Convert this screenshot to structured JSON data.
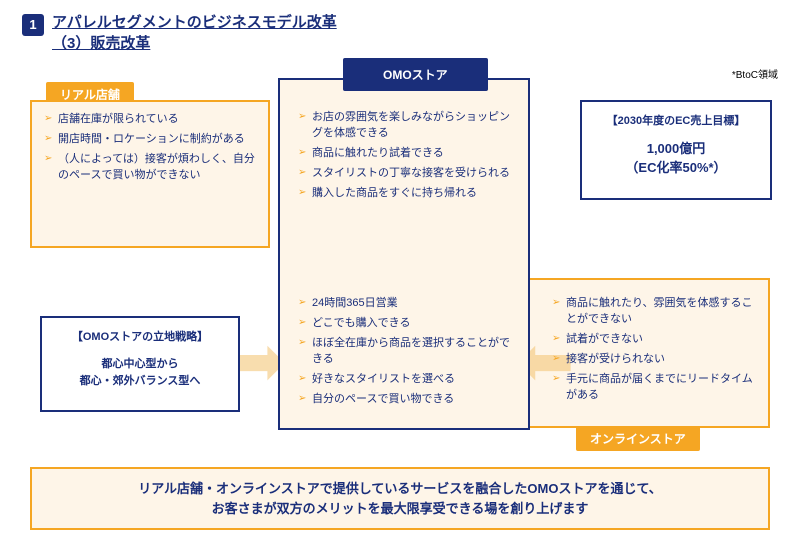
{
  "section_number": "1",
  "title_line1": "アパレルセグメントのビジネスモデル改革",
  "title_line2": "（3）販売改革",
  "note": "*BtoC領域",
  "tabs": {
    "real": "リアル店舗",
    "omo": "OMOストア",
    "online": "オンラインストア"
  },
  "real_items": [
    "店舗在庫が限られている",
    "開店時間・ロケーションに制約がある",
    "（人によっては）接客が煩わしく、自分のペースで買い物ができない"
  ],
  "omo1_items": [
    "お店の雰囲気を楽しみながらショッピングを体感できる",
    "商品に触れたり試着できる",
    "スタイリストの丁寧な接客を受けられる",
    "購入した商品をすぐに持ち帰れる"
  ],
  "omo2_items": [
    "24時間365日営業",
    "どこでも購入できる",
    "ほぼ全在庫から商品を選択することができる",
    "好きなスタイリストを選べる",
    "自分のペースで買い物できる"
  ],
  "online_items": [
    "商品に触れたり、雰囲気を体感することができない",
    "試着ができない",
    "接客が受けられない",
    "手元に商品が届くまでにリードタイムがある"
  ],
  "target": {
    "heading": "【2030年度のEC売上目標】",
    "value": "1,000億円",
    "sub": "（EC化率50%*）"
  },
  "strategy": {
    "heading": "【OMOストアの立地戦略】",
    "line1": "都心中心型から",
    "line2": "都心・郊外バランス型へ"
  },
  "footer_line1": "リアル店舗・オンラインストアで提供しているサービスを融合したOMOストアを通じて、",
  "footer_line2": "お客さまが双方のメリットを最大限享受できる場を創り上げます",
  "colors": {
    "navy": "#1a2e7a",
    "orange": "#f5a623",
    "cream": "#fef5e8"
  }
}
